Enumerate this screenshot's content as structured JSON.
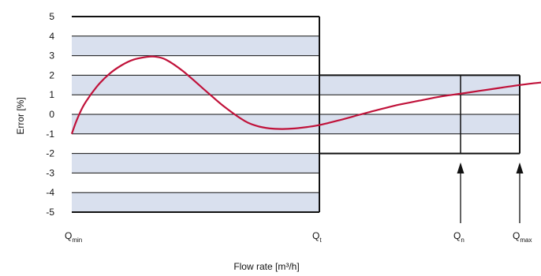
{
  "chart_data": {
    "type": "line",
    "title": "",
    "xlabel": "Flow rate [m³/h]",
    "ylabel": "Error [%]",
    "ylim": [
      -5,
      5
    ],
    "y_ticks": [
      5,
      4,
      3,
      2,
      1,
      0,
      -1,
      -2,
      -3,
      -4,
      -5
    ],
    "y_tick_labels": [
      "5",
      "4",
      "3",
      "2",
      "1",
      "0",
      "-1",
      "-2",
      "-3",
      "-4",
      "-5"
    ],
    "x_markers": [
      {
        "base": "Q",
        "sub": "min"
      },
      {
        "base": "Q",
        "sub": "t"
      },
      {
        "base": "Q",
        "sub": "n"
      },
      {
        "base": "Q",
        "sub": "max"
      }
    ],
    "tolerance_zones": [
      {
        "from": "Qmin",
        "to": "Qt",
        "lower": -5,
        "upper": 5
      },
      {
        "from": "Qt",
        "to": "Qmax",
        "lower": -2,
        "upper": 2
      }
    ],
    "grid": true,
    "colors": {
      "band": "#d9e0ee",
      "grid": "#111111",
      "curve": "#c0123a"
    },
    "series": [
      {
        "x": [
          0,
          0.02,
          0.05,
          0.1,
          0.15,
          0.2,
          0.25,
          0.3,
          0.335,
          0.38,
          0.45,
          0.55,
          0.62,
          0.7,
          0.75,
          0.8,
          0.85,
          0.9,
          0.95,
          1.0,
          1.1,
          1.2,
          1.3,
          1.4,
          1.5,
          1.6,
          1.7,
          1.8,
          1.9,
          2.0,
          2.1,
          2.15
        ],
        "values": [
          -1.0,
          -0.3,
          0.5,
          1.4,
          2.05,
          2.5,
          2.8,
          2.93,
          2.95,
          2.8,
          2.2,
          1.1,
          0.35,
          -0.35,
          -0.6,
          -0.72,
          -0.75,
          -0.72,
          -0.65,
          -0.55,
          -0.3,
          -0.02,
          0.25,
          0.5,
          0.7,
          0.9,
          1.05,
          1.2,
          1.35,
          1.5,
          1.62,
          1.65
        ]
      }
    ]
  }
}
